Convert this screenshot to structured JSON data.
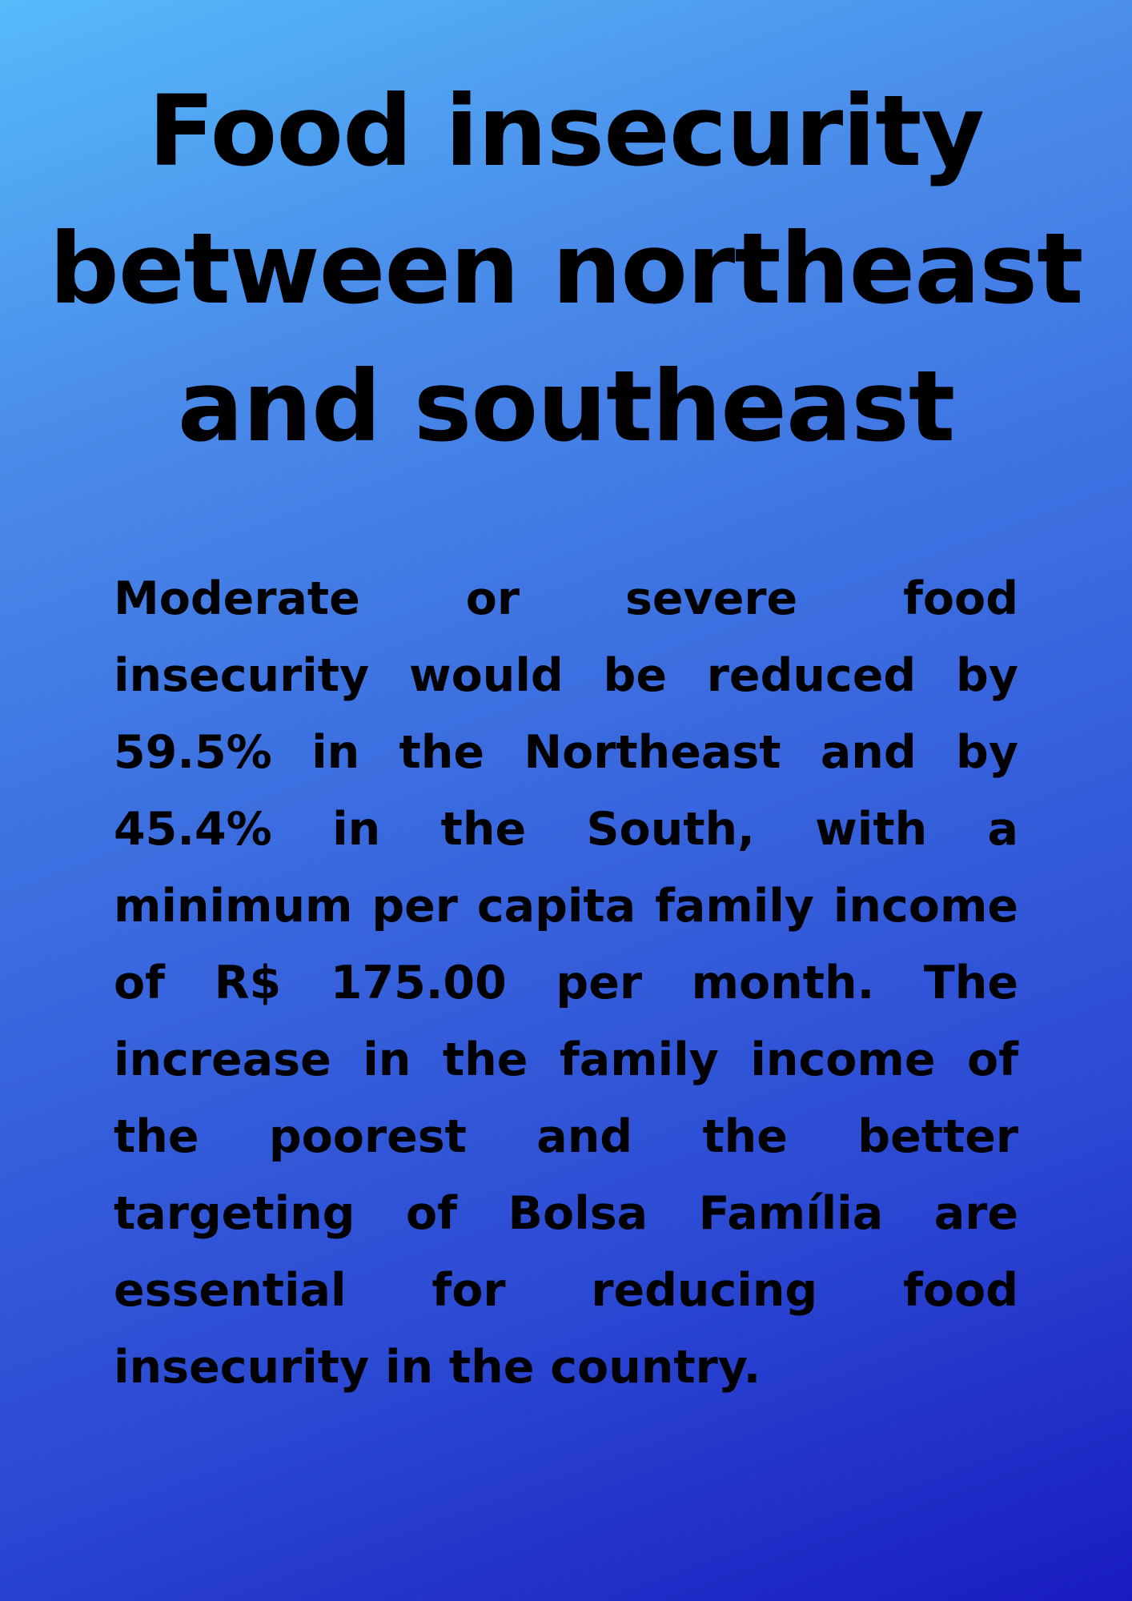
{
  "poster": {
    "title": "Food insecurity between northeast and southeast",
    "body": "Moderate or severe food insecurity would be reduced by 59.5% in the Northeast and by 45.4% in the South, with a minimum per capita family income of R$ 175.00 per month. The increase in the family income of the poorest and the better targeting of Bolsa Família are essential for reducing food insecurity in the country."
  },
  "colors": {
    "gradient_top": "#56baf9",
    "gradient_bottom": "#1a1cc0",
    "text": "#000000"
  }
}
